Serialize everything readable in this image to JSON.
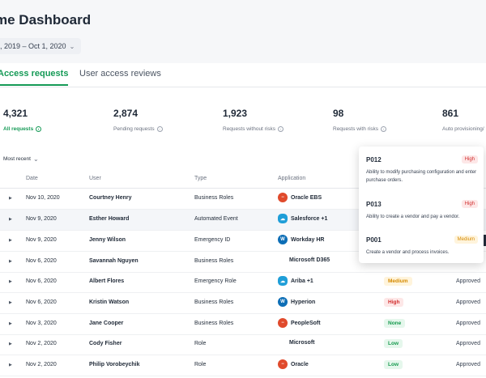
{
  "header": {
    "title": "me Dashboard",
    "date_range": ", 2019 – Oct 1, 2020"
  },
  "tabs": [
    {
      "label": "Access requests"
    },
    {
      "label": "User access reviews"
    }
  ],
  "stats": [
    {
      "value": "4,321",
      "label": "All requests"
    },
    {
      "value": "2,874",
      "label": "Pending requests"
    },
    {
      "value": "1,923",
      "label": "Requests without risks"
    },
    {
      "value": "98",
      "label": "Requests with risks"
    },
    {
      "value": "861",
      "label": "Auto provisioning/"
    }
  ],
  "sort": {
    "label": "Most recent"
  },
  "table": {
    "headers": {
      "date": "Date",
      "user": "User",
      "type": "Type",
      "application": "Application"
    },
    "rows": [
      {
        "date": "Nov 10, 2020",
        "user": "Courtney Henry",
        "type": "Business Roles",
        "app": "Oracle EBS",
        "icon": "oracle-icon",
        "risk": "",
        "status": ""
      },
      {
        "date": "Nov 9, 2020",
        "user": "Esther Howard",
        "type": "Automated Event",
        "app": "Salesforce +1",
        "icon": "salesforce-icon",
        "risk": "",
        "status": ""
      },
      {
        "date": "Nov 9, 2020",
        "user": "Jenny Wilson",
        "type": "Emergency ID",
        "app": "Workday HR",
        "icon": "workday-icon",
        "risk": "",
        "status": ""
      },
      {
        "date": "Nov 6, 2020",
        "user": "Savannah Nguyen",
        "type": "Business Roles",
        "app": "Microsoft D365",
        "icon": "microsoft-icon",
        "risk": "",
        "status": ""
      },
      {
        "date": "Nov 6, 2020",
        "user": "Albert Flores",
        "type": "Emergency Role",
        "app": "Ariba +1",
        "icon": "salesforce-icon",
        "risk": "Medium",
        "status": "Approved"
      },
      {
        "date": "Nov 6, 2020",
        "user": "Kristin Watson",
        "type": "Business Roles",
        "app": "Hyperion",
        "icon": "workday-icon",
        "risk": "High",
        "status": "Approved"
      },
      {
        "date": "Nov 3, 2020",
        "user": "Jane Cooper",
        "type": "Business Roles",
        "app": "PeopleSoft",
        "icon": "oracle-icon",
        "risk": "None",
        "status": "Approved"
      },
      {
        "date": "Nov 2, 2020",
        "user": "Cody Fisher",
        "type": "Role",
        "app": "Microsoft",
        "icon": "microsoft-icon",
        "risk": "Low",
        "status": "Approved"
      },
      {
        "date": "Nov 2, 2020",
        "user": "Philip Vorobeychik",
        "type": "Role",
        "app": "Oracle",
        "icon": "oracle-icon",
        "risk": "Low",
        "status": "Approved"
      }
    ]
  },
  "popup": [
    {
      "id": "P012",
      "tag": "High",
      "desc": "Ability to modify purchasing configuration and enter purchase orders."
    },
    {
      "id": "P013",
      "tag": "High",
      "desc": "Ability to create a vendor and pay a vendor."
    },
    {
      "id": "P001",
      "tag": "Medium",
      "desc": "Create a vendor and process invoices."
    }
  ],
  "colors": {
    "accent": "#159a56",
    "high": "#d12d2d",
    "medium": "#d58a00",
    "low": "#179a4f"
  }
}
